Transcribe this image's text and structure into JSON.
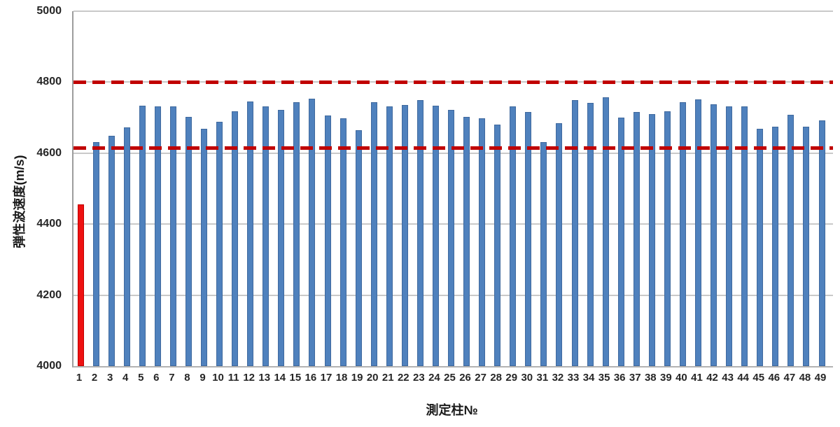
{
  "chart_data": {
    "type": "bar",
    "title": "",
    "xlabel": "測定柱№",
    "ylabel": "弾性波速度(m/s)",
    "ylim": [
      4000,
      5000
    ],
    "yticks": [
      4000,
      4200,
      4400,
      4600,
      4800,
      5000
    ],
    "ytick_labels": [
      "4000",
      "4200",
      "4400",
      "4600",
      "4800",
      "5000"
    ],
    "grid": true,
    "legend_position": "none",
    "categories": [
      "1",
      "2",
      "3",
      "4",
      "5",
      "6",
      "7",
      "8",
      "9",
      "10",
      "11",
      "12",
      "13",
      "14",
      "15",
      "16",
      "17",
      "18",
      "19",
      "20",
      "21",
      "22",
      "23",
      "24",
      "25",
      "26",
      "27",
      "28",
      "29",
      "30",
      "31",
      "32",
      "33",
      "34",
      "35",
      "36",
      "37",
      "38",
      "39",
      "40",
      "41",
      "42",
      "43",
      "44",
      "45",
      "46",
      "47",
      "48",
      "49"
    ],
    "values": [
      4455,
      4632,
      4648,
      4672,
      4733,
      4731,
      4731,
      4703,
      4668,
      4689,
      4717,
      4745,
      4731,
      4721,
      4744,
      4753,
      4706,
      4698,
      4664,
      4743,
      4731,
      4736,
      4750,
      4733,
      4722,
      4702,
      4699,
      4681,
      4731,
      4715,
      4632,
      4685,
      4750,
      4741,
      4757,
      4701,
      4716,
      4711,
      4718,
      4744,
      4752,
      4738,
      4731,
      4731,
      4669,
      4674,
      4709,
      4674,
      4693
    ],
    "highlight_index": 0,
    "colors": {
      "bar_fill": "#4f81bd",
      "bar_border": "#3f699e",
      "highlight_fill": "#ee1111",
      "highlight_border": "#c00000",
      "reference_line": "#c00000",
      "gridline": "#c9c9c9",
      "axis": "#9d9d9d",
      "text": "#262626"
    },
    "reference_lines": [
      {
        "name": "upper-limit",
        "value": 4800,
        "style": "dashed",
        "color": "#c00000"
      },
      {
        "name": "lower-limit",
        "value": 4615,
        "style": "dashed",
        "color": "#c00000"
      }
    ]
  }
}
